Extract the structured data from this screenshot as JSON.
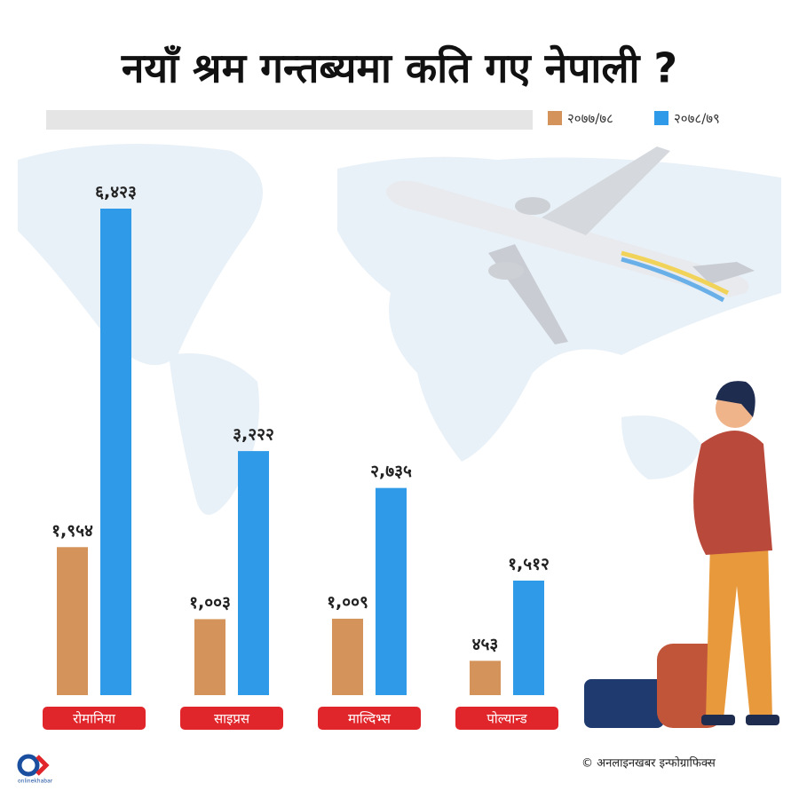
{
  "chart_data": {
    "type": "bar",
    "title": "नयाँ श्रम गन्तब्यमा कति गए नेपाली ?",
    "categories": [
      "रोमानिया",
      "साइप्रस",
      "माल्दिभ्स",
      "पोल्यान्ड"
    ],
    "series": [
      {
        "name": "२०७७/७८",
        "color": "#d4935a",
        "values": [
          1954,
          1003,
          1009,
          453
        ],
        "value_labels": [
          "१,९५४",
          "१,००३",
          "१,००९",
          "४५३"
        ]
      },
      {
        "name": "२०७८/७९",
        "color": "#2f9ae8",
        "values": [
          6423,
          3222,
          2735,
          1512
        ],
        "value_labels": [
          "६,४२३",
          "३,२२२",
          "२,७३५",
          "१,५१२"
        ]
      }
    ],
    "legend": "top-right",
    "footer": "© अनलाइनखबर इन्फोग्राफिक्स",
    "logo": "onlinekhabar"
  }
}
